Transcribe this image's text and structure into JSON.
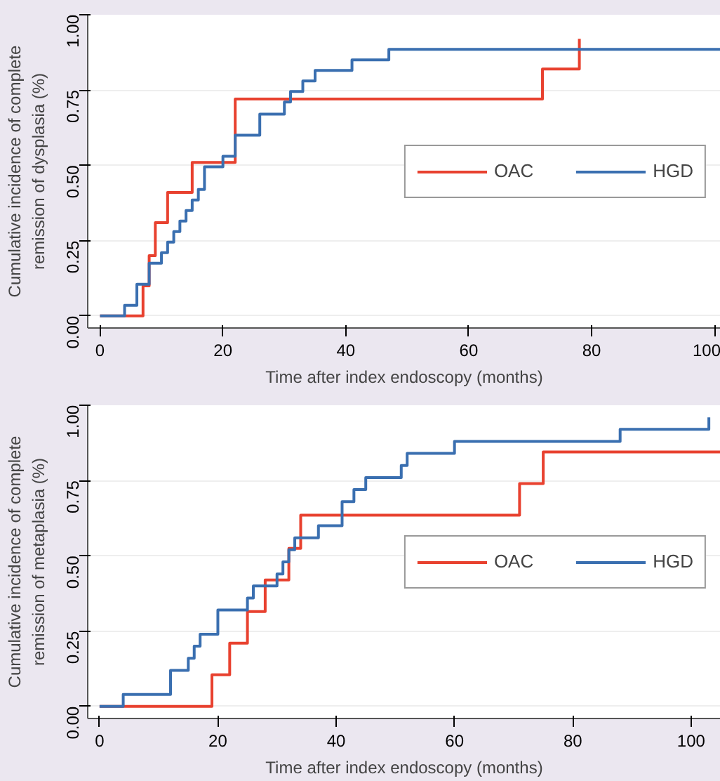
{
  "chart_data": [
    {
      "type": "step",
      "xlabel": "Time after index endoscopy (months)",
      "ylabel": "Cumulative incidence of complete\nremission of dysplasia (%)",
      "xlim": [
        -2,
        101
      ],
      "ylim": [
        -0.04,
        1.0
      ],
      "xticks": [
        0,
        20,
        40,
        60,
        80,
        100
      ],
      "yticks": [
        {
          "value": 0,
          "label": "0.00"
        },
        {
          "value": 0.25,
          "label": "0.25"
        },
        {
          "value": 0.5,
          "label": "0.50"
        },
        {
          "value": 0.75,
          "label": "0.75"
        },
        {
          "value": 1,
          "label": "1.00"
        }
      ],
      "grid": "y",
      "legend": "right",
      "line_style": "solid",
      "series": [
        {
          "name": "OAC",
          "color": "#e8412f",
          "x": [
            0,
            7,
            8,
            9,
            11,
            15,
            22,
            72,
            78
          ],
          "values": [
            0,
            0.1,
            0.2,
            0.31,
            0.41,
            0.51,
            0.72,
            0.82,
            0.92
          ]
        },
        {
          "name": "HGD",
          "color": "#3a6fb0",
          "x": [
            0,
            4,
            6,
            8,
            10,
            11,
            12,
            13,
            14,
            15,
            16,
            17,
            20,
            22,
            26,
            30,
            31,
            33,
            35,
            41,
            47,
            101
          ],
          "values": [
            0,
            0.035,
            0.105,
            0.175,
            0.21,
            0.245,
            0.28,
            0.315,
            0.35,
            0.385,
            0.42,
            0.495,
            0.53,
            0.6,
            0.67,
            0.71,
            0.745,
            0.78,
            0.815,
            0.85,
            0.885,
            0.885
          ]
        }
      ]
    },
    {
      "type": "step",
      "xlabel": "Time after index endoscopy (months)",
      "ylabel": "Cumulative incidence of complete\nremission of metaplasia (%)",
      "xlim": [
        -2,
        105
      ],
      "ylim": [
        -0.04,
        1.0
      ],
      "xticks": [
        0,
        20,
        40,
        60,
        80,
        100
      ],
      "yticks": [
        {
          "value": 0,
          "label": "0.00"
        },
        {
          "value": 0.25,
          "label": "0.25"
        },
        {
          "value": 0.5,
          "label": "0.50"
        },
        {
          "value": 0.75,
          "label": "0.75"
        },
        {
          "value": 1,
          "label": "1.00"
        }
      ],
      "grid": "y",
      "legend": "right",
      "line_style": "solid",
      "series": [
        {
          "name": "OAC",
          "color": "#e8412f",
          "x": [
            0,
            19,
            22,
            25,
            28,
            32,
            34,
            71,
            75,
            105
          ],
          "values": [
            0,
            0.105,
            0.21,
            0.315,
            0.42,
            0.525,
            0.635,
            0.74,
            0.845,
            0.845
          ]
        },
        {
          "name": "HGD",
          "color": "#3a6fb0",
          "x": [
            0,
            4,
            12,
            15,
            16,
            17,
            20,
            25,
            26,
            30,
            31,
            32,
            33,
            37,
            41,
            43,
            45,
            51,
            52,
            60,
            88,
            103
          ],
          "values": [
            0,
            0.04,
            0.12,
            0.16,
            0.2,
            0.24,
            0.32,
            0.36,
            0.4,
            0.44,
            0.48,
            0.52,
            0.56,
            0.6,
            0.68,
            0.72,
            0.76,
            0.8,
            0.84,
            0.88,
            0.92,
            0.96
          ]
        }
      ]
    }
  ]
}
